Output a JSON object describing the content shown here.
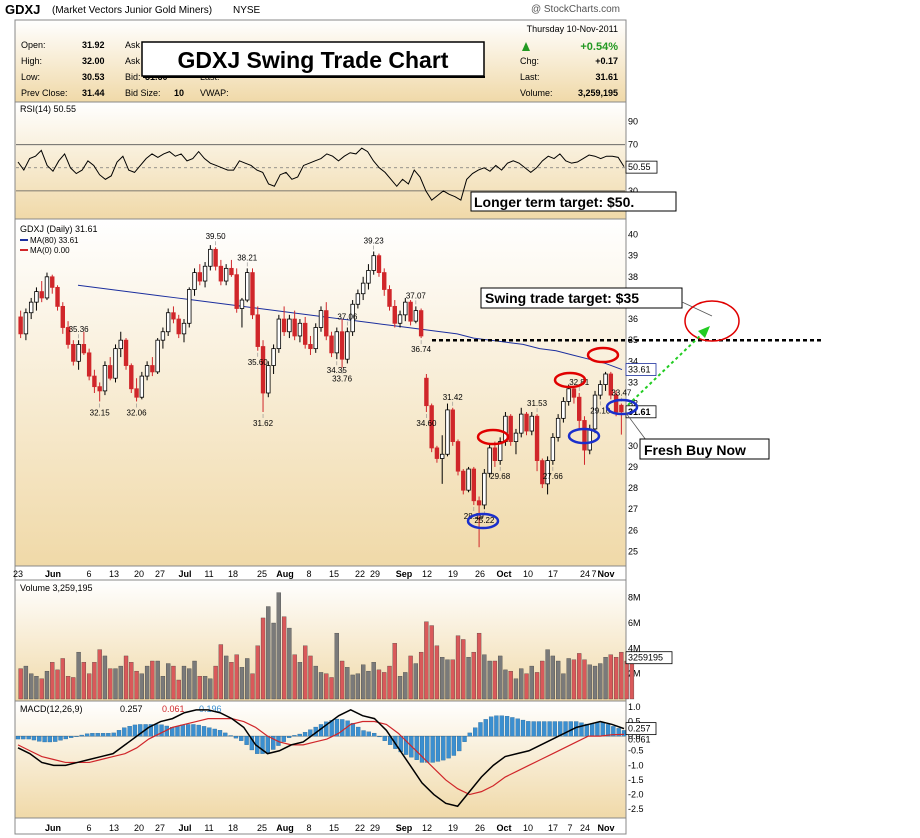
{
  "header": {
    "symbol": "GDXJ",
    "name": "(Market Vectors Junior Gold Miners)",
    "exchange": "NYSE",
    "watermark": "@ StockCharts.com",
    "date": "Thursday   10-Nov-2011",
    "labels": [
      "Open:",
      "High:",
      "Low:",
      "Prev Close:",
      "Ask",
      "Ask",
      "Bid:",
      "Bid Size:",
      "Last:",
      "VWAP:",
      "Chg:",
      "Last:",
      "Volume:"
    ],
    "values": [
      "31.92",
      "32.00",
      "30.53",
      "31.44",
      "31.60",
      "10",
      "+0.17",
      "31.61",
      "3,259,195"
    ],
    "pct_change": "+0.54%",
    "overlay_title": "GDXJ Swing Trade Chart"
  },
  "colors": {
    "panel_bg_top": "#ffffff",
    "panel_bg_bottom": "#f0d9a8",
    "up": "#000000",
    "down": "#d0262a",
    "ma80": "#1c2f9e",
    "ma0": "#d0262a",
    "vol_up": "#7a7a7a",
    "vol_down": "#d9595a",
    "macd_hist": "#3b8fd0",
    "red_circle": "#e00000",
    "blue_circle": "#1a2fcc",
    "green_arrow": "#22cc22",
    "pct_green": "#229922"
  },
  "annotations": {
    "longer_target": "Longer term target: $50.",
    "swing_target": "Swing trade target: $35",
    "fresh_buy": "Fresh Buy Now"
  },
  "chart_data": [
    {
      "panel": "RSI",
      "type": "line",
      "title": "RSI(14) 50.55",
      "last_value_label": "50.55",
      "ylim": [
        10,
        100
      ],
      "yticks": [
        90,
        70,
        50,
        30
      ],
      "bands": [
        70,
        30
      ],
      "values": [
        55,
        48,
        58,
        60,
        65,
        52,
        47,
        56,
        62,
        50,
        45,
        48,
        56,
        52,
        44,
        40,
        43,
        55,
        60,
        48,
        46,
        52,
        58,
        62,
        59,
        62,
        64,
        60,
        62,
        56,
        58,
        64,
        58,
        54,
        52,
        50,
        48,
        48,
        56,
        54,
        52,
        48,
        46,
        36,
        34,
        44,
        46,
        40,
        42,
        52,
        54,
        56,
        58,
        62,
        60,
        56,
        60,
        63,
        62,
        67,
        64,
        56,
        50,
        46,
        40,
        34,
        40,
        36,
        48,
        42,
        30,
        22,
        26,
        30,
        27,
        25,
        22,
        40,
        45,
        48,
        50,
        47,
        52,
        48,
        54,
        56,
        54,
        50,
        46,
        50,
        56,
        60,
        58,
        62,
        56,
        54,
        55,
        58,
        61,
        60,
        58,
        60,
        60,
        59,
        51
      ]
    },
    {
      "panel": "Price",
      "type": "candlestick",
      "title": "GDXJ (Daily) 31.61",
      "legend": [
        "MA(80) 33.61",
        "MA(0) 0.00"
      ],
      "last_price_label": "31.61",
      "ma_label": "33.61",
      "ylim": [
        24.5,
        40.5
      ],
      "yticks": [
        25,
        26,
        27,
        28,
        29,
        30,
        31,
        32,
        33,
        34,
        35,
        36,
        37,
        38,
        39,
        40
      ],
      "ytick_labels": [
        "25",
        "26",
        "27",
        "28",
        "29",
        "30",
        "",
        "32",
        "33",
        "34",
        "35",
        "36",
        "37",
        "38",
        "39",
        "40"
      ],
      "x_labels": [
        "23",
        "Jun",
        "6",
        "13",
        "20",
        "27",
        "Jul",
        "11",
        "18",
        "25",
        "Aug",
        "8",
        "15",
        "22",
        "29",
        "Sep",
        "12",
        "19",
        "26",
        "Oct",
        "10",
        "17",
        "24",
        "Nov",
        "7"
      ],
      "ohlc": [
        [
          36.1,
          36.4,
          35.1,
          35.3
        ],
        [
          35.3,
          36.5,
          35.0,
          36.3
        ],
        [
          36.3,
          37.0,
          36.0,
          36.8
        ],
        [
          36.8,
          37.5,
          36.4,
          37.3
        ],
        [
          37.3,
          37.8,
          36.8,
          37.0
        ],
        [
          37.0,
          38.2,
          36.9,
          38.0
        ],
        [
          38.0,
          38.1,
          37.2,
          37.5
        ],
        [
          37.5,
          37.6,
          36.4,
          36.6
        ],
        [
          36.6,
          36.8,
          35.3,
          35.6
        ],
        [
          35.6,
          35.9,
          34.6,
          34.8
        ],
        [
          34.8,
          35.0,
          33.8,
          34.0
        ],
        [
          34.0,
          35.0,
          33.6,
          34.8
        ],
        [
          34.8,
          35.4,
          34.3,
          34.4
        ],
        [
          34.4,
          34.6,
          33.1,
          33.3
        ],
        [
          33.3,
          33.6,
          32.5,
          32.8
        ],
        [
          32.8,
          33.0,
          32.1,
          32.6
        ],
        [
          32.6,
          34.0,
          32.4,
          33.8
        ],
        [
          33.8,
          34.2,
          33.1,
          33.2
        ],
        [
          33.2,
          34.8,
          33.0,
          34.6
        ],
        [
          34.6,
          35.4,
          34.2,
          35.0
        ],
        [
          35.0,
          35.1,
          33.6,
          33.8
        ],
        [
          33.8,
          33.9,
          32.5,
          32.7
        ],
        [
          32.7,
          33.2,
          32.1,
          32.3
        ],
        [
          32.3,
          33.5,
          32.2,
          33.3
        ],
        [
          33.3,
          34.0,
          33.1,
          33.8
        ],
        [
          33.8,
          34.2,
          33.3,
          33.5
        ],
        [
          33.5,
          35.1,
          33.4,
          35.0
        ],
        [
          35.0,
          35.6,
          34.6,
          35.4
        ],
        [
          35.4,
          36.5,
          35.2,
          36.3
        ],
        [
          36.3,
          36.6,
          35.8,
          36.0
        ],
        [
          36.0,
          36.2,
          35.1,
          35.3
        ],
        [
          35.3,
          36.0,
          34.9,
          35.8
        ],
        [
          35.8,
          37.5,
          35.6,
          37.4
        ],
        [
          37.4,
          38.4,
          37.1,
          38.2
        ],
        [
          38.2,
          38.6,
          37.6,
          37.8
        ],
        [
          37.8,
          38.7,
          37.5,
          38.5
        ],
        [
          38.5,
          39.5,
          38.3,
          39.3
        ],
        [
          39.3,
          39.4,
          38.3,
          38.5
        ],
        [
          38.5,
          38.8,
          37.6,
          37.8
        ],
        [
          37.8,
          38.6,
          37.6,
          38.4
        ],
        [
          38.4,
          38.8,
          38.0,
          38.1
        ],
        [
          38.1,
          38.4,
          36.3,
          36.5
        ],
        [
          36.5,
          37.0,
          35.6,
          36.9
        ],
        [
          36.9,
          38.4,
          36.8,
          38.2
        ],
        [
          38.2,
          38.4,
          36.0,
          36.2
        ],
        [
          36.2,
          36.6,
          34.5,
          34.7
        ],
        [
          34.7,
          35.0,
          31.6,
          32.5
        ],
        [
          32.5,
          34.0,
          32.3,
          33.8
        ],
        [
          33.8,
          34.8,
          33.4,
          34.6
        ],
        [
          34.6,
          36.2,
          34.4,
          36.0
        ],
        [
          36.0,
          36.6,
          35.2,
          35.4
        ],
        [
          35.4,
          36.2,
          35.1,
          36.0
        ],
        [
          36.0,
          36.4,
          35.0,
          35.2
        ],
        [
          35.2,
          36.0,
          34.9,
          35.8
        ],
        [
          35.8,
          36.1,
          34.6,
          34.8
        ],
        [
          34.8,
          35.2,
          34.3,
          34.6
        ],
        [
          34.6,
          35.8,
          34.4,
          35.6
        ],
        [
          35.6,
          36.6,
          35.4,
          36.4
        ],
        [
          36.4,
          36.8,
          35.0,
          35.2
        ],
        [
          35.2,
          35.4,
          34.2,
          34.4
        ],
        [
          34.4,
          35.6,
          34.1,
          35.4
        ],
        [
          35.4,
          36.0,
          33.7,
          34.1
        ],
        [
          34.1,
          35.6,
          33.9,
          35.4
        ],
        [
          35.4,
          36.9,
          35.2,
          36.7
        ],
        [
          36.7,
          37.4,
          36.5,
          37.2
        ],
        [
          37.2,
          38.0,
          36.9,
          37.7
        ],
        [
          37.7,
          38.6,
          37.4,
          38.3
        ],
        [
          38.3,
          39.2,
          38.1,
          39.0
        ],
        [
          39.0,
          39.1,
          38.0,
          38.2
        ],
        [
          38.2,
          38.4,
          37.1,
          37.4
        ],
        [
          37.4,
          37.6,
          36.4,
          36.6
        ],
        [
          36.6,
          36.9,
          35.6,
          35.8
        ],
        [
          35.8,
          36.4,
          35.6,
          36.2
        ],
        [
          36.2,
          37.0,
          35.9,
          36.8
        ],
        [
          36.8,
          36.9,
          35.7,
          35.9
        ],
        [
          35.9,
          36.6,
          35.8,
          36.4
        ],
        [
          36.4,
          36.5,
          35.1,
          35.2
        ],
        [
          33.2,
          33.4,
          31.6,
          31.9
        ],
        [
          31.9,
          32.0,
          29.7,
          29.9
        ],
        [
          29.9,
          30.0,
          29.2,
          29.4
        ],
        [
          29.4,
          30.5,
          28.2,
          29.6
        ],
        [
          29.6,
          32.0,
          29.5,
          31.7
        ],
        [
          31.7,
          31.8,
          30.0,
          30.2
        ],
        [
          30.2,
          30.3,
          28.6,
          28.8
        ],
        [
          28.8,
          28.9,
          27.7,
          27.9
        ],
        [
          27.9,
          29.0,
          27.8,
          28.9
        ],
        [
          28.9,
          29.0,
          27.2,
          27.4
        ],
        [
          27.4,
          27.6,
          25.2,
          27.2
        ],
        [
          27.2,
          28.9,
          27.0,
          28.7
        ],
        [
          28.7,
          30.1,
          28.5,
          29.9
        ],
        [
          29.9,
          30.2,
          29.0,
          29.3
        ],
        [
          29.3,
          30.4,
          29.1,
          30.2
        ],
        [
          30.2,
          31.6,
          30.0,
          31.4
        ],
        [
          31.4,
          31.5,
          30.0,
          30.2
        ],
        [
          30.2,
          30.8,
          29.6,
          30.6
        ],
        [
          30.6,
          31.8,
          30.4,
          31.5
        ],
        [
          31.5,
          31.6,
          30.5,
          30.7
        ],
        [
          30.7,
          31.6,
          30.5,
          31.4
        ],
        [
          31.4,
          31.5,
          28.8,
          29.3
        ],
        [
          29.3,
          29.4,
          28.0,
          28.2
        ],
        [
          28.2,
          29.5,
          27.7,
          29.3
        ],
        [
          29.3,
          30.6,
          29.1,
          30.4
        ],
        [
          30.4,
          31.5,
          30.2,
          31.3
        ],
        [
          31.3,
          32.3,
          31.1,
          32.1
        ],
        [
          32.1,
          32.9,
          31.9,
          32.7
        ],
        [
          32.7,
          32.8,
          32.0,
          32.3
        ],
        [
          32.3,
          32.5,
          30.8,
          31.2
        ],
        [
          31.2,
          31.4,
          29.1,
          29.8
        ],
        [
          29.8,
          31.0,
          29.6,
          30.8
        ],
        [
          30.8,
          32.6,
          30.6,
          32.4
        ],
        [
          32.4,
          33.1,
          32.2,
          32.9
        ],
        [
          32.9,
          33.5,
          32.6,
          33.4
        ],
        [
          33.4,
          33.5,
          32.2,
          32.4
        ],
        [
          32.4,
          32.6,
          31.4,
          31.6
        ],
        [
          31.92,
          32.0,
          30.53,
          31.61
        ]
      ],
      "ma80": [
        37.6,
        37.5,
        37.4,
        37.3,
        37.2,
        37.1,
        37.0,
        36.9,
        36.8,
        36.7,
        36.6,
        36.5,
        36.4,
        36.3,
        36.2,
        36.1,
        36.0,
        35.9,
        35.8,
        35.7,
        35.6,
        35.5,
        35.4,
        35.3,
        35.1,
        35.0,
        34.9,
        34.8,
        34.6,
        34.5,
        34.3,
        34.1,
        33.9,
        33.61
      ],
      "price_labels": [
        "35.36",
        "32.15",
        "32.06",
        "39.50",
        "38.21",
        "35.60",
        "31.62",
        "37.06",
        "34.35",
        "33.76",
        "39.23",
        "36.74",
        "37.07",
        "34.60",
        "31.42",
        "28.19",
        "25.22",
        "31.53",
        "29.68",
        "27.66",
        "32.81",
        "29.10",
        "33.47"
      ]
    },
    {
      "panel": "Volume",
      "type": "bar",
      "title": "Volume 3,259,195",
      "last_value_label": "3259195",
      "ylim": [
        0,
        9000000
      ],
      "ytick_labels": [
        "8M",
        "6M",
        "4M",
        "2M"
      ],
      "values": [
        2.4,
        2.6,
        2.0,
        1.8,
        1.6,
        2.2,
        2.9,
        2.3,
        3.2,
        1.8,
        1.7,
        3.7,
        2.9,
        2.0,
        2.9,
        3.9,
        3.4,
        2.4,
        2.4,
        2.6,
        3.4,
        2.9,
        2.2,
        2.0,
        2.6,
        3.0,
        3.0,
        1.8,
        2.8,
        2.6,
        1.5,
        2.6,
        2.4,
        3.0,
        1.8,
        1.8,
        1.6,
        2.6,
        4.3,
        3.4,
        2.9,
        3.5,
        2.5,
        3.2,
        2.0,
        4.2,
        6.4,
        7.3,
        6.0,
        8.4,
        6.5,
        5.6,
        3.5,
        2.9,
        4.2,
        3.4,
        2.6,
        2.1,
        2.0,
        1.7,
        5.2,
        3.0,
        2.5,
        1.9,
        2.0,
        2.7,
        2.2,
        2.9,
        2.3,
        2.1,
        2.6,
        4.4,
        1.8,
        2.1,
        3.4,
        2.8,
        3.7,
        6.1,
        5.8,
        4.2,
        3.3,
        3.1,
        3.1,
        5.0,
        4.7,
        3.3,
        3.7,
        5.2,
        3.5,
        3.0,
        3.0,
        3.4,
        2.3,
        2.2,
        1.6,
        2.4,
        2.0,
        2.6,
        2.1,
        3.0,
        3.9,
        3.4,
        3.0,
        2.0,
        3.2,
        3.1,
        3.6,
        3.1,
        2.7,
        2.6,
        2.8,
        3.3,
        3.5,
        3.3,
        3.7,
        3.0,
        3.26
      ]
    },
    {
      "panel": "MACD",
      "type": "line",
      "title": "MACD(12,26,9)",
      "title_values": [
        "0.257",
        "0.061",
        "0.196"
      ],
      "last_value_labels": [
        "0.257",
        "0.061"
      ],
      "ylim": [
        -2.7,
        1.1
      ],
      "ytick_labels": [
        "1.0",
        "0.5",
        "0.0",
        "-0.5",
        "-1.0",
        "-1.5",
        "-2.0",
        "-2.5"
      ],
      "ytick_values": [
        1.0,
        0.5,
        0.0,
        -0.5,
        -1.0,
        -1.5,
        -2.0,
        -2.5
      ],
      "x_labels": [
        "Jun",
        "6",
        "13",
        "20",
        "27",
        "Jul",
        "11",
        "18",
        "25",
        "Aug",
        "8",
        "15",
        "22",
        "29",
        "Sep",
        "12",
        "19",
        "26",
        "Oct",
        "10",
        "17",
        "24",
        "Nov",
        "7"
      ],
      "macd": [
        -0.4,
        -0.6,
        -0.9,
        -1.0,
        -1.0,
        -0.9,
        -0.8,
        -0.7,
        -0.6,
        -0.3,
        0.0,
        0.3,
        0.5,
        0.6,
        0.8,
        0.9,
        0.9,
        0.8,
        0.6,
        0.3,
        -0.3,
        -0.6,
        -0.5,
        -0.3,
        -0.2,
        0.1,
        0.4,
        0.7,
        0.9,
        0.7,
        0.6,
        0.2,
        -0.4,
        -1.0,
        -1.6,
        -2.0,
        -2.3,
        -2.4,
        -1.9,
        -1.4,
        -1.0,
        -0.7,
        -0.6,
        -0.5,
        -0.3,
        -0.1,
        0.1,
        0.3,
        0.4,
        0.5,
        0.4,
        0.257
      ],
      "signal": [
        -0.3,
        -0.5,
        -0.7,
        -0.8,
        -0.9,
        -0.9,
        -0.9,
        -0.8,
        -0.7,
        -0.6,
        -0.4,
        -0.1,
        0.1,
        0.3,
        0.4,
        0.5,
        0.6,
        0.6,
        0.6,
        0.5,
        0.3,
        0.0,
        -0.2,
        -0.3,
        -0.3,
        -0.2,
        -0.1,
        0.1,
        0.4,
        0.5,
        0.5,
        0.4,
        0.1,
        -0.3,
        -0.7,
        -1.1,
        -1.5,
        -1.8,
        -2.0,
        -1.9,
        -1.7,
        -1.4,
        -1.2,
        -1.0,
        -0.8,
        -0.6,
        -0.4,
        -0.2,
        0.0,
        0.0,
        0.05,
        0.061
      ]
    }
  ]
}
